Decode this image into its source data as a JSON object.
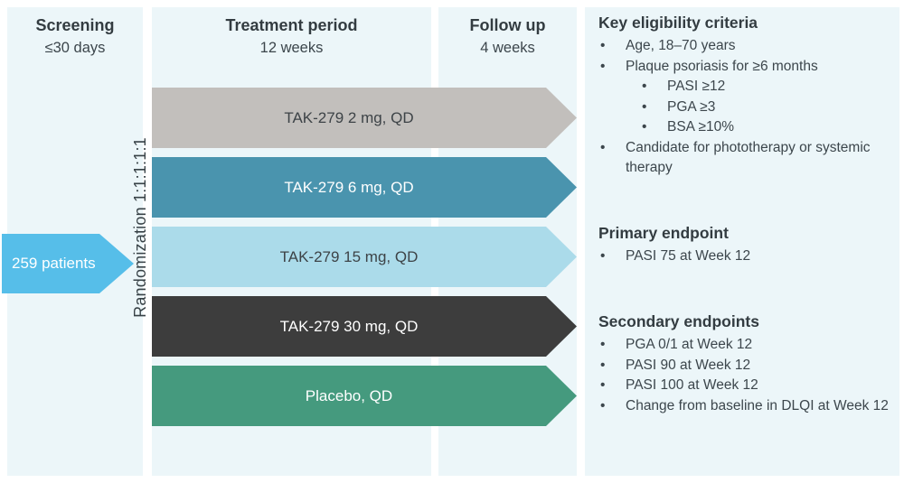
{
  "columns": {
    "screening": {
      "title": "Screening",
      "subtitle": "≤30 days"
    },
    "treatment": {
      "title": "Treatment period",
      "subtitle": "12 weeks"
    },
    "followup": {
      "title": "Follow up",
      "subtitle": "4 weeks"
    }
  },
  "patients_arrow": {
    "label": "259 patients",
    "color": "#56bee9"
  },
  "randomization_label": "Randomization 1:1:1:1:1",
  "arms": [
    {
      "label": "TAK-279 2 mg, QD",
      "color": "#c2bfbc",
      "text_color": "#3d4347"
    },
    {
      "label": "TAK-279 6 mg, QD",
      "color": "#4a94ae",
      "text_color": "#ffffff"
    },
    {
      "label": "TAK-279 15 mg, QD",
      "color": "#abdbea",
      "text_color": "#3d4347"
    },
    {
      "label": "TAK-279 30 mg, QD",
      "color": "#3d3d3d",
      "text_color": "#ffffff"
    },
    {
      "label": "Placebo, QD",
      "color": "#459a7e",
      "text_color": "#ffffff"
    }
  ],
  "info": {
    "eligibility": {
      "title": "Key eligibility criteria",
      "items": [
        {
          "level": 1,
          "text": "Age, 18–70 years"
        },
        {
          "level": 1,
          "text": "Plaque psoriasis for ≥6 months"
        },
        {
          "level": 2,
          "text": "PASI ≥12"
        },
        {
          "level": 2,
          "text": "PGA ≥3"
        },
        {
          "level": 2,
          "text": "BSA ≥10%"
        },
        {
          "level": 1,
          "text": "Candidate for phototherapy or systemic therapy"
        }
      ]
    },
    "primary": {
      "title": "Primary endpoint",
      "items": [
        {
          "level": 1,
          "text": "PASI 75 at Week 12"
        }
      ]
    },
    "secondary": {
      "title": "Secondary endpoints",
      "items": [
        {
          "level": 1,
          "text": "PGA 0/1 at Week 12"
        },
        {
          "level": 1,
          "text": "PASI 90 at Week 12"
        },
        {
          "level": 1,
          "text": "PASI 100 at Week 12"
        },
        {
          "level": 1,
          "text": "Change from baseline in DLQI at Week 12"
        }
      ]
    }
  },
  "colors": {
    "panel_background": "#ecf6f9",
    "canvas_background": "#ffffff",
    "text_dark": "#374146"
  }
}
